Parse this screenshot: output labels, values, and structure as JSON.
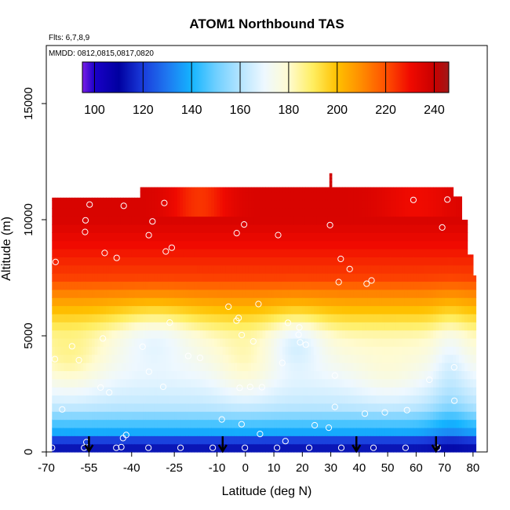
{
  "chart_data": {
    "type": "heatmap",
    "title": "ATOM1 Northbound TAS",
    "flights_note": "Flts: 6,7,8,9",
    "dates_note": "MMDD: 0812,0815,0817,0820",
    "xlabel": "Latitude (deg N)",
    "ylabel": "Altitude (m)",
    "xlim": [
      -70,
      85
    ],
    "ylim": [
      0,
      17500
    ],
    "x_ticks": [
      -70,
      -55,
      -40,
      -25,
      -10,
      0,
      10,
      20,
      30,
      40,
      50,
      60,
      70,
      80
    ],
    "x_tick_labels": [
      "-70",
      "-55",
      "-40",
      "-25",
      "-10",
      "0",
      "10",
      "20",
      "30",
      "40",
      "50",
      "60",
      "70",
      "80"
    ],
    "y_ticks": [
      0,
      5000,
      10000,
      15000
    ],
    "y_tick_labels": [
      "0",
      "5000",
      "10000",
      "15000"
    ],
    "colorbar": {
      "range": [
        95,
        246
      ],
      "ticks": [
        100,
        120,
        140,
        160,
        180,
        200,
        220,
        240
      ],
      "tick_labels": [
        "100",
        "120",
        "140",
        "160",
        "180",
        "200",
        "220",
        "240"
      ],
      "stops": [
        {
          "value": 95,
          "color": "#7b1fe6"
        },
        {
          "value": 100,
          "color": "#1a00c8"
        },
        {
          "value": 110,
          "color": "#0000a0"
        },
        {
          "value": 120,
          "color": "#1a3cdc"
        },
        {
          "value": 130,
          "color": "#1e78f0"
        },
        {
          "value": 140,
          "color": "#14b4ff"
        },
        {
          "value": 150,
          "color": "#6ecfff"
        },
        {
          "value": 160,
          "color": "#b4e4ff"
        },
        {
          "value": 170,
          "color": "#eef8ff"
        },
        {
          "value": 180,
          "color": "#fffbd0"
        },
        {
          "value": 190,
          "color": "#ffee60"
        },
        {
          "value": 200,
          "color": "#ffc000"
        },
        {
          "value": 210,
          "color": "#ff8c00"
        },
        {
          "value": 220,
          "color": "#ff5000"
        },
        {
          "value": 230,
          "color": "#f00a00"
        },
        {
          "value": 240,
          "color": "#c80000"
        },
        {
          "value": 246,
          "color": "#a01818"
        }
      ]
    },
    "profile_latitudes": [
      -55,
      -8,
      39,
      67
    ],
    "colors": {
      "point_marker": "#ffffff",
      "arrow": "#000000",
      "frame": "#000000"
    }
  }
}
